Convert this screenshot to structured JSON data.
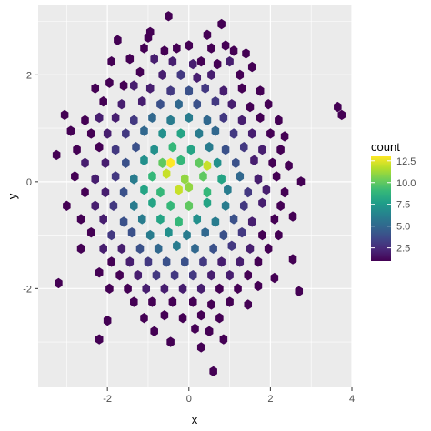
{
  "chart_data": {
    "type": "heatmap",
    "subtype": "hexbin",
    "xlabel": "x",
    "ylabel": "y",
    "xlim": [
      -3.7,
      4.0
    ],
    "ylim": [
      -3.85,
      3.3
    ],
    "x_ticks": [
      -2,
      0,
      2,
      4
    ],
    "x_tick_labels": [
      "-2",
      "0",
      "2",
      "4"
    ],
    "y_ticks": [
      -2,
      0,
      2
    ],
    "y_tick_labels": [
      "-2",
      "0",
      "2"
    ],
    "grid": true,
    "panel_background": "#ebebeb",
    "grid_color": "#ffffff",
    "legend": {
      "title": "count",
      "position": "right",
      "breaks": [
        2.5,
        5.0,
        7.5,
        10.0,
        12.5
      ],
      "break_labels": [
        "2.5",
        "5.0",
        "7.5",
        "10.0",
        "12.5"
      ],
      "limits": [
        1,
        13
      ],
      "colormap": "viridis",
      "colors": [
        "#440154",
        "#482878",
        "#3e4989",
        "#31688e",
        "#26828e",
        "#1f9e89",
        "#35b779",
        "#6ece58",
        "#b5de2b",
        "#fde725"
      ]
    },
    "hex_size": 0.105,
    "bins": [
      {
        "x": -0.5,
        "y": 3.1,
        "count": 1
      },
      {
        "x": 0.8,
        "y": 2.95,
        "count": 1
      },
      {
        "x": -1.75,
        "y": 2.65,
        "count": 1
      },
      {
        "x": -0.95,
        "y": 2.8,
        "count": 1
      },
      {
        "x": -1.0,
        "y": 2.7,
        "count": 1
      },
      {
        "x": 0.45,
        "y": 2.75,
        "count": 1
      },
      {
        "x": -1.1,
        "y": 2.5,
        "count": 1
      },
      {
        "x": -0.6,
        "y": 2.45,
        "count": 1
      },
      {
        "x": -0.3,
        "y": 2.5,
        "count": 1
      },
      {
        "x": 0.0,
        "y": 2.55,
        "count": 1
      },
      {
        "x": 0.55,
        "y": 2.5,
        "count": 1
      },
      {
        "x": 0.9,
        "y": 2.55,
        "count": 1
      },
      {
        "x": 1.1,
        "y": 2.45,
        "count": 1
      },
      {
        "x": 1.4,
        "y": 2.4,
        "count": 1
      },
      {
        "x": -1.9,
        "y": 2.25,
        "count": 1
      },
      {
        "x": -1.45,
        "y": 2.3,
        "count": 1
      },
      {
        "x": -0.85,
        "y": 2.3,
        "count": 2
      },
      {
        "x": -0.4,
        "y": 2.25,
        "count": 2
      },
      {
        "x": 0.1,
        "y": 2.2,
        "count": 2
      },
      {
        "x": 0.3,
        "y": 2.25,
        "count": 1
      },
      {
        "x": 0.7,
        "y": 2.2,
        "count": 1
      },
      {
        "x": 1.0,
        "y": 2.25,
        "count": 2
      },
      {
        "x": 1.55,
        "y": 2.15,
        "count": 1
      },
      {
        "x": -1.2,
        "y": 2.05,
        "count": 1
      },
      {
        "x": -0.65,
        "y": 2.0,
        "count": 2
      },
      {
        "x": -0.2,
        "y": 2.0,
        "count": 3
      },
      {
        "x": 0.2,
        "y": 1.95,
        "count": 2
      },
      {
        "x": 0.55,
        "y": 2.0,
        "count": 2
      },
      {
        "x": 1.25,
        "y": 2.0,
        "count": 1
      },
      {
        "x": -2.3,
        "y": 1.75,
        "count": 1
      },
      {
        "x": -1.95,
        "y": 1.85,
        "count": 1
      },
      {
        "x": -1.6,
        "y": 1.8,
        "count": 1
      },
      {
        "x": -1.35,
        "y": 1.8,
        "count": 2
      },
      {
        "x": -0.95,
        "y": 1.75,
        "count": 2
      },
      {
        "x": -0.45,
        "y": 1.7,
        "count": 3
      },
      {
        "x": 0.0,
        "y": 1.7,
        "count": 4
      },
      {
        "x": 0.4,
        "y": 1.75,
        "count": 3
      },
      {
        "x": 0.85,
        "y": 1.7,
        "count": 2
      },
      {
        "x": 1.3,
        "y": 1.75,
        "count": 1
      },
      {
        "x": 1.75,
        "y": 1.7,
        "count": 1
      },
      {
        "x": -2.1,
        "y": 1.5,
        "count": 1
      },
      {
        "x": -1.65,
        "y": 1.45,
        "count": 2
      },
      {
        "x": -1.15,
        "y": 1.5,
        "count": 2
      },
      {
        "x": -0.7,
        "y": 1.45,
        "count": 4
      },
      {
        "x": -0.25,
        "y": 1.45,
        "count": 5
      },
      {
        "x": 0.2,
        "y": 1.45,
        "count": 4
      },
      {
        "x": 0.65,
        "y": 1.5,
        "count": 3
      },
      {
        "x": 1.05,
        "y": 1.45,
        "count": 2
      },
      {
        "x": 1.5,
        "y": 1.4,
        "count": 1
      },
      {
        "x": 1.95,
        "y": 1.45,
        "count": 1
      },
      {
        "x": -3.05,
        "y": 1.25,
        "count": 1
      },
      {
        "x": -2.55,
        "y": 1.15,
        "count": 1
      },
      {
        "x": -2.2,
        "y": 1.2,
        "count": 2
      },
      {
        "x": -1.8,
        "y": 1.2,
        "count": 2
      },
      {
        "x": -1.35,
        "y": 1.15,
        "count": 3
      },
      {
        "x": -0.9,
        "y": 1.2,
        "count": 5
      },
      {
        "x": -0.45,
        "y": 1.15,
        "count": 6
      },
      {
        "x": 0.0,
        "y": 1.2,
        "count": 6
      },
      {
        "x": 0.45,
        "y": 1.15,
        "count": 5
      },
      {
        "x": 0.85,
        "y": 1.2,
        "count": 3
      },
      {
        "x": 1.3,
        "y": 1.15,
        "count": 2
      },
      {
        "x": 1.75,
        "y": 1.2,
        "count": 1
      },
      {
        "x": 2.2,
        "y": 1.15,
        "count": 1
      },
      {
        "x": 3.65,
        "y": 1.4,
        "count": 1
      },
      {
        "x": 3.75,
        "y": 1.25,
        "count": 1
      },
      {
        "x": -2.9,
        "y": 0.95,
        "count": 1
      },
      {
        "x": -2.4,
        "y": 0.9,
        "count": 1
      },
      {
        "x": -2.0,
        "y": 0.9,
        "count": 2
      },
      {
        "x": -1.55,
        "y": 0.9,
        "count": 3
      },
      {
        "x": -1.1,
        "y": 0.95,
        "count": 5
      },
      {
        "x": -0.65,
        "y": 0.9,
        "count": 7
      },
      {
        "x": -0.2,
        "y": 0.9,
        "count": 8
      },
      {
        "x": 0.25,
        "y": 0.9,
        "count": 6
      },
      {
        "x": 0.65,
        "y": 0.95,
        "count": 5
      },
      {
        "x": 1.1,
        "y": 0.9,
        "count": 3
      },
      {
        "x": 1.55,
        "y": 0.9,
        "count": 2
      },
      {
        "x": 2.0,
        "y": 0.9,
        "count": 1
      },
      {
        "x": 2.35,
        "y": 0.85,
        "count": 1
      },
      {
        "x": -2.75,
        "y": 0.6,
        "count": 1
      },
      {
        "x": -2.2,
        "y": 0.65,
        "count": 1
      },
      {
        "x": -1.8,
        "y": 0.6,
        "count": 3
      },
      {
        "x": -1.3,
        "y": 0.65,
        "count": 4
      },
      {
        "x": -0.85,
        "y": 0.6,
        "count": 7
      },
      {
        "x": -0.4,
        "y": 0.65,
        "count": 9
      },
      {
        "x": 0.05,
        "y": 0.6,
        "count": 8
      },
      {
        "x": 0.5,
        "y": 0.65,
        "count": 6
      },
      {
        "x": 0.9,
        "y": 0.6,
        "count": 4
      },
      {
        "x": 1.35,
        "y": 0.65,
        "count": 3
      },
      {
        "x": 1.8,
        "y": 0.6,
        "count": 2
      },
      {
        "x": 2.25,
        "y": 0.6,
        "count": 1
      },
      {
        "x": -3.25,
        "y": 0.5,
        "count": 1
      },
      {
        "x": -2.55,
        "y": 0.35,
        "count": 2
      },
      {
        "x": -2.05,
        "y": 0.35,
        "count": 2
      },
      {
        "x": -1.55,
        "y": 0.35,
        "count": 4
      },
      {
        "x": -1.1,
        "y": 0.4,
        "count": 7
      },
      {
        "x": -0.65,
        "y": 0.35,
        "count": 10
      },
      {
        "x": -0.45,
        "y": 0.35,
        "count": 13
      },
      {
        "x": -0.2,
        "y": 0.4,
        "count": 9
      },
      {
        "x": 0.25,
        "y": 0.35,
        "count": 10
      },
      {
        "x": 0.45,
        "y": 0.3,
        "count": 12
      },
      {
        "x": 0.7,
        "y": 0.35,
        "count": 7
      },
      {
        "x": 1.15,
        "y": 0.35,
        "count": 4
      },
      {
        "x": 1.6,
        "y": 0.4,
        "count": 2
      },
      {
        "x": 2.05,
        "y": 0.35,
        "count": 1
      },
      {
        "x": 2.45,
        "y": 0.3,
        "count": 1
      },
      {
        "x": -2.8,
        "y": 0.1,
        "count": 1
      },
      {
        "x": -2.3,
        "y": 0.05,
        "count": 2
      },
      {
        "x": -1.8,
        "y": 0.1,
        "count": 3
      },
      {
        "x": -1.35,
        "y": 0.05,
        "count": 6
      },
      {
        "x": -0.9,
        "y": 0.1,
        "count": 9
      },
      {
        "x": -0.55,
        "y": 0.15,
        "count": 12
      },
      {
        "x": -0.1,
        "y": 0.05,
        "count": 11
      },
      {
        "x": 0.35,
        "y": 0.1,
        "count": 10
      },
      {
        "x": 0.8,
        "y": 0.05,
        "count": 8
      },
      {
        "x": 1.25,
        "y": 0.1,
        "count": 5
      },
      {
        "x": 1.7,
        "y": 0.05,
        "count": 2
      },
      {
        "x": 2.15,
        "y": 0.1,
        "count": 1
      },
      {
        "x": 2.75,
        "y": 0.0,
        "count": 1
      },
      {
        "x": -2.55,
        "y": -0.2,
        "count": 1
      },
      {
        "x": -2.05,
        "y": -0.2,
        "count": 2
      },
      {
        "x": -1.6,
        "y": -0.2,
        "count": 4
      },
      {
        "x": -1.1,
        "y": -0.15,
        "count": 8
      },
      {
        "x": -0.7,
        "y": -0.2,
        "count": 9
      },
      {
        "x": -0.25,
        "y": -0.15,
        "count": 12
      },
      {
        "x": 0.0,
        "y": -0.1,
        "count": 11
      },
      {
        "x": 0.45,
        "y": -0.2,
        "count": 9
      },
      {
        "x": 0.95,
        "y": -0.15,
        "count": 6
      },
      {
        "x": 1.45,
        "y": -0.2,
        "count": 3
      },
      {
        "x": 1.9,
        "y": -0.15,
        "count": 2
      },
      {
        "x": 2.35,
        "y": -0.2,
        "count": 1
      },
      {
        "x": -3.0,
        "y": -0.45,
        "count": 1
      },
      {
        "x": -2.3,
        "y": -0.45,
        "count": 2
      },
      {
        "x": -1.85,
        "y": -0.45,
        "count": 3
      },
      {
        "x": -1.35,
        "y": -0.45,
        "count": 6
      },
      {
        "x": -0.9,
        "y": -0.4,
        "count": 8
      },
      {
        "x": -0.45,
        "y": -0.45,
        "count": 9
      },
      {
        "x": 0.0,
        "y": -0.45,
        "count": 10
      },
      {
        "x": 0.45,
        "y": -0.4,
        "count": 8
      },
      {
        "x": 0.9,
        "y": -0.45,
        "count": 6
      },
      {
        "x": 1.35,
        "y": -0.45,
        "count": 3
      },
      {
        "x": 1.8,
        "y": -0.4,
        "count": 2
      },
      {
        "x": 2.25,
        "y": -0.45,
        "count": 1
      },
      {
        "x": -2.65,
        "y": -0.7,
        "count": 1
      },
      {
        "x": -2.1,
        "y": -0.7,
        "count": 2
      },
      {
        "x": -1.6,
        "y": -0.75,
        "count": 4
      },
      {
        "x": -1.15,
        "y": -0.7,
        "count": 6
      },
      {
        "x": -0.7,
        "y": -0.7,
        "count": 8
      },
      {
        "x": -0.25,
        "y": -0.75,
        "count": 9
      },
      {
        "x": 0.2,
        "y": -0.7,
        "count": 7
      },
      {
        "x": 0.65,
        "y": -0.75,
        "count": 6
      },
      {
        "x": 1.1,
        "y": -0.7,
        "count": 4
      },
      {
        "x": 1.55,
        "y": -0.75,
        "count": 2
      },
      {
        "x": 2.1,
        "y": -0.7,
        "count": 1
      },
      {
        "x": 2.55,
        "y": -0.65,
        "count": 1
      },
      {
        "x": -2.4,
        "y": -0.95,
        "count": 1
      },
      {
        "x": -1.9,
        "y": -1.0,
        "count": 3
      },
      {
        "x": -1.4,
        "y": -0.95,
        "count": 4
      },
      {
        "x": -0.95,
        "y": -1.0,
        "count": 6
      },
      {
        "x": -0.5,
        "y": -0.95,
        "count": 7
      },
      {
        "x": -0.05,
        "y": -1.0,
        "count": 6
      },
      {
        "x": 0.4,
        "y": -0.95,
        "count": 5
      },
      {
        "x": 0.85,
        "y": -1.0,
        "count": 4
      },
      {
        "x": 1.3,
        "y": -0.95,
        "count": 3
      },
      {
        "x": 1.8,
        "y": -1.0,
        "count": 1
      },
      {
        "x": 2.2,
        "y": -1.0,
        "count": 1
      },
      {
        "x": -2.65,
        "y": -1.25,
        "count": 1
      },
      {
        "x": -2.1,
        "y": -1.25,
        "count": 2
      },
      {
        "x": -1.65,
        "y": -1.25,
        "count": 2
      },
      {
        "x": -1.2,
        "y": -1.25,
        "count": 4
      },
      {
        "x": -0.75,
        "y": -1.25,
        "count": 5
      },
      {
        "x": -0.3,
        "y": -1.2,
        "count": 6
      },
      {
        "x": 0.15,
        "y": -1.25,
        "count": 5
      },
      {
        "x": 0.6,
        "y": -1.25,
        "count": 4
      },
      {
        "x": 1.05,
        "y": -1.2,
        "count": 3
      },
      {
        "x": 1.5,
        "y": -1.25,
        "count": 2
      },
      {
        "x": 1.95,
        "y": -1.25,
        "count": 1
      },
      {
        "x": -1.9,
        "y": -1.5,
        "count": 1
      },
      {
        "x": -1.45,
        "y": -1.5,
        "count": 2
      },
      {
        "x": -1.0,
        "y": -1.5,
        "count": 3
      },
      {
        "x": -0.55,
        "y": -1.5,
        "count": 4
      },
      {
        "x": -0.1,
        "y": -1.5,
        "count": 4
      },
      {
        "x": 0.35,
        "y": -1.5,
        "count": 3
      },
      {
        "x": 0.8,
        "y": -1.5,
        "count": 2
      },
      {
        "x": 1.25,
        "y": -1.5,
        "count": 2
      },
      {
        "x": 1.7,
        "y": -1.5,
        "count": 1
      },
      {
        "x": 2.55,
        "y": -1.45,
        "count": 1
      },
      {
        "x": -2.2,
        "y": -1.7,
        "count": 1
      },
      {
        "x": -1.7,
        "y": -1.75,
        "count": 1
      },
      {
        "x": -1.25,
        "y": -1.75,
        "count": 2
      },
      {
        "x": -0.8,
        "y": -1.75,
        "count": 3
      },
      {
        "x": -0.35,
        "y": -1.75,
        "count": 3
      },
      {
        "x": 0.1,
        "y": -1.75,
        "count": 3
      },
      {
        "x": 0.55,
        "y": -1.75,
        "count": 2
      },
      {
        "x": 1.0,
        "y": -1.75,
        "count": 2
      },
      {
        "x": 1.45,
        "y": -1.75,
        "count": 1
      },
      {
        "x": 2.1,
        "y": -1.8,
        "count": 1
      },
      {
        "x": -3.2,
        "y": -1.9,
        "count": 1
      },
      {
        "x": -1.95,
        "y": -2.0,
        "count": 1
      },
      {
        "x": -1.5,
        "y": -2.0,
        "count": 1
      },
      {
        "x": -1.05,
        "y": -2.0,
        "count": 2
      },
      {
        "x": -0.6,
        "y": -2.0,
        "count": 2
      },
      {
        "x": -0.15,
        "y": -2.0,
        "count": 2
      },
      {
        "x": 0.3,
        "y": -2.0,
        "count": 2
      },
      {
        "x": 0.75,
        "y": -2.0,
        "count": 1
      },
      {
        "x": 1.2,
        "y": -2.0,
        "count": 1
      },
      {
        "x": 1.7,
        "y": -1.95,
        "count": 1
      },
      {
        "x": 2.7,
        "y": -2.05,
        "count": 1
      },
      {
        "x": -1.35,
        "y": -2.25,
        "count": 1
      },
      {
        "x": -0.9,
        "y": -2.25,
        "count": 1
      },
      {
        "x": -0.4,
        "y": -2.25,
        "count": 1
      },
      {
        "x": 0.1,
        "y": -2.25,
        "count": 1
      },
      {
        "x": 0.55,
        "y": -2.3,
        "count": 1
      },
      {
        "x": 1.0,
        "y": -2.25,
        "count": 1
      },
      {
        "x": 1.45,
        "y": -2.3,
        "count": 1
      },
      {
        "x": -1.1,
        "y": -2.55,
        "count": 1
      },
      {
        "x": -0.6,
        "y": -2.5,
        "count": 1
      },
      {
        "x": -0.15,
        "y": -2.55,
        "count": 1
      },
      {
        "x": 0.3,
        "y": -2.5,
        "count": 1
      },
      {
        "x": 0.75,
        "y": -2.55,
        "count": 1
      },
      {
        "x": -2.0,
        "y": -2.6,
        "count": 1
      },
      {
        "x": -0.85,
        "y": -2.8,
        "count": 1
      },
      {
        "x": 0.15,
        "y": -2.75,
        "count": 1
      },
      {
        "x": 0.5,
        "y": -2.8,
        "count": 1
      },
      {
        "x": -2.2,
        "y": -2.95,
        "count": 1
      },
      {
        "x": -0.45,
        "y": -3.0,
        "count": 1
      },
      {
        "x": 0.85,
        "y": -2.95,
        "count": 1
      },
      {
        "x": 0.3,
        "y": -3.1,
        "count": 1
      },
      {
        "x": 0.6,
        "y": -3.55,
        "count": 1
      }
    ]
  }
}
